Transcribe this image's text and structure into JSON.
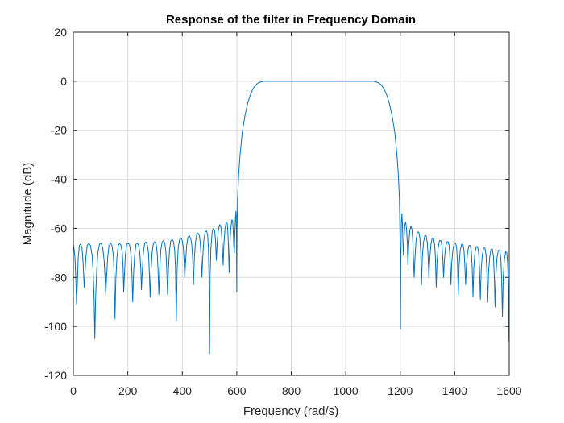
{
  "chart_data": {
    "type": "line",
    "title": "Response of the filter in Frequency Domain",
    "xlabel": "Frequency (rad/s)",
    "ylabel": "Magnitude (dB)",
    "xlim": [
      0,
      1600
    ],
    "ylim": [
      -120,
      20
    ],
    "xticks": [
      0,
      200,
      400,
      600,
      800,
      1000,
      1200,
      1400,
      1600
    ],
    "yticks": [
      20,
      0,
      -20,
      -40,
      -60,
      -80,
      -100,
      -120
    ],
    "xtick_labels": [
      "0",
      "200",
      "400",
      "600",
      "800",
      "1000",
      "1200",
      "1400",
      "1600"
    ],
    "ytick_labels": [
      "20",
      "0",
      "-20",
      "-40",
      "-60",
      "-80",
      "-100",
      "-120"
    ],
    "grid": true,
    "line_color": "#0072BD",
    "series": [
      {
        "values": [
          [
            0,
            -66.5
          ],
          [
            2.5,
            -68
          ],
          [
            6,
            -72
          ],
          [
            9,
            -80
          ],
          [
            12,
            -91
          ],
          [
            15,
            -82
          ],
          [
            18,
            -72
          ],
          [
            22,
            -67
          ],
          [
            27,
            -66.3
          ],
          [
            32,
            -68
          ],
          [
            36,
            -74
          ],
          [
            38,
            -79
          ],
          [
            40,
            -84
          ],
          [
            42,
            -80
          ],
          [
            46,
            -72
          ],
          [
            51,
            -67
          ],
          [
            57,
            -66
          ],
          [
            63,
            -67
          ],
          [
            69,
            -71
          ],
          [
            73,
            -78
          ],
          [
            76,
            -88
          ],
          [
            79,
            -105
          ],
          [
            82,
            -88
          ],
          [
            86,
            -77
          ],
          [
            90,
            -70
          ],
          [
            96,
            -66.5
          ],
          [
            102,
            -66
          ],
          [
            108,
            -68
          ],
          [
            113,
            -73
          ],
          [
            116,
            -79
          ],
          [
            119,
            -87
          ],
          [
            122,
            -80
          ],
          [
            126,
            -72
          ],
          [
            131,
            -67
          ],
          [
            137,
            -66
          ],
          [
            142,
            -67
          ],
          [
            147,
            -71
          ],
          [
            150,
            -79
          ],
          [
            153,
            -97
          ],
          [
            156,
            -81
          ],
          [
            160,
            -72
          ],
          [
            165,
            -67
          ],
          [
            170,
            -66
          ],
          [
            175,
            -67
          ],
          [
            180,
            -70
          ],
          [
            183,
            -77
          ],
          [
            185,
            -86
          ],
          [
            188,
            -78
          ],
          [
            191,
            -71
          ],
          [
            196,
            -66.5
          ],
          [
            202,
            -66
          ],
          [
            207,
            -67
          ],
          [
            212,
            -71
          ],
          [
            215,
            -78
          ],
          [
            218,
            -90
          ],
          [
            221,
            -79
          ],
          [
            225,
            -71
          ],
          [
            230,
            -66.5
          ],
          [
            235,
            -66
          ],
          [
            240,
            -67
          ],
          [
            244,
            -70
          ],
          [
            248,
            -77
          ],
          [
            250,
            -85
          ],
          [
            253,
            -78
          ],
          [
            257,
            -70
          ],
          [
            262,
            -66
          ],
          [
            267,
            -65.5
          ],
          [
            272,
            -67
          ],
          [
            276,
            -70
          ],
          [
            279,
            -78
          ],
          [
            282,
            -88
          ],
          [
            285,
            -78
          ],
          [
            289,
            -70
          ],
          [
            294,
            -66
          ],
          [
            299,
            -65.5
          ],
          [
            304,
            -66.5
          ],
          [
            308,
            -70
          ],
          [
            311,
            -77
          ],
          [
            314,
            -87
          ],
          [
            317,
            -77
          ],
          [
            321,
            -69
          ],
          [
            326,
            -65.5
          ],
          [
            331,
            -65
          ],
          [
            336,
            -66
          ],
          [
            340,
            -70
          ],
          [
            343,
            -77
          ],
          [
            346,
            -87
          ],
          [
            349,
            -77
          ],
          [
            353,
            -69
          ],
          [
            358,
            -65
          ],
          [
            363,
            -64.5
          ],
          [
            368,
            -65.5
          ],
          [
            372,
            -69
          ],
          [
            375,
            -76
          ],
          [
            378,
            -98
          ],
          [
            381,
            -77
          ],
          [
            385,
            -68
          ],
          [
            390,
            -64.5
          ],
          [
            395,
            -64
          ],
          [
            400,
            -65
          ],
          [
            404,
            -68
          ],
          [
            407,
            -74
          ],
          [
            409,
            -80
          ],
          [
            412,
            -74
          ],
          [
            416,
            -67
          ],
          [
            421,
            -63.5
          ],
          [
            426,
            -63
          ],
          [
            431,
            -64
          ],
          [
            435,
            -67
          ],
          [
            438,
            -72
          ],
          [
            441,
            -83
          ],
          [
            444,
            -73
          ],
          [
            448,
            -66
          ],
          [
            453,
            -62.5
          ],
          [
            458,
            -62
          ],
          [
            463,
            -63
          ],
          [
            466,
            -66
          ],
          [
            469,
            -71
          ],
          [
            472,
            -80
          ],
          [
            475,
            -72
          ],
          [
            479,
            -65
          ],
          [
            484,
            -61.5
          ],
          [
            489,
            -61
          ],
          [
            493,
            -62.5
          ],
          [
            496,
            -68
          ],
          [
            498,
            -80
          ],
          [
            500,
            -111
          ],
          [
            502,
            -80
          ],
          [
            505,
            -68
          ],
          [
            510,
            -61
          ],
          [
            515,
            -60
          ],
          [
            519,
            -61
          ],
          [
            522,
            -65
          ],
          [
            525,
            -73
          ],
          [
            528,
            -66
          ],
          [
            532,
            -61
          ],
          [
            537,
            -58.5
          ],
          [
            541,
            -59
          ],
          [
            544,
            -62
          ],
          [
            547,
            -67
          ],
          [
            550,
            -75
          ],
          [
            553,
            -66
          ],
          [
            557,
            -60
          ],
          [
            561,
            -57.5
          ],
          [
            565,
            -58
          ],
          [
            567,
            -61
          ],
          [
            569,
            -66
          ],
          [
            572,
            -78
          ],
          [
            575,
            -66
          ],
          [
            578,
            -60
          ],
          [
            582,
            -56.5
          ],
          [
            585,
            -57
          ],
          [
            587,
            -61
          ],
          [
            589,
            -67
          ],
          [
            591,
            -70
          ],
          [
            593,
            -62
          ],
          [
            595,
            -56
          ],
          [
            597,
            -53
          ],
          [
            598,
            -55
          ],
          [
            599,
            -65
          ],
          [
            600,
            -86
          ],
          [
            601,
            -60
          ],
          [
            603,
            -48
          ],
          [
            607,
            -38
          ],
          [
            612,
            -30
          ],
          [
            620,
            -21
          ],
          [
            630,
            -14
          ],
          [
            640,
            -9
          ],
          [
            650,
            -5.5
          ],
          [
            660,
            -3
          ],
          [
            670,
            -1.5
          ],
          [
            680,
            -0.6
          ],
          [
            690,
            -0.2
          ],
          [
            700,
            0
          ],
          [
            750,
            0
          ],
          [
            800,
            0
          ],
          [
            850,
            0
          ],
          [
            900,
            0
          ],
          [
            950,
            0
          ],
          [
            1000,
            0
          ],
          [
            1050,
            0
          ],
          [
            1100,
            0
          ],
          [
            1110,
            -0.2
          ],
          [
            1120,
            -0.6
          ],
          [
            1130,
            -1.5
          ],
          [
            1140,
            -3
          ],
          [
            1150,
            -5.5
          ],
          [
            1160,
            -9
          ],
          [
            1170,
            -14
          ],
          [
            1180,
            -21
          ],
          [
            1188,
            -30
          ],
          [
            1193,
            -38
          ],
          [
            1197,
            -48
          ],
          [
            1200,
            -70
          ],
          [
            1201,
            -101
          ],
          [
            1202,
            -76
          ],
          [
            1204,
            -58
          ],
          [
            1206,
            -54
          ],
          [
            1208,
            -58
          ],
          [
            1210,
            -66
          ],
          [
            1212,
            -71
          ],
          [
            1214,
            -64
          ],
          [
            1217,
            -58.5
          ],
          [
            1220,
            -57.5
          ],
          [
            1223,
            -60
          ],
          [
            1226,
            -66
          ],
          [
            1228,
            -75
          ],
          [
            1231,
            -67
          ],
          [
            1235,
            -61
          ],
          [
            1239,
            -59
          ],
          [
            1243,
            -60.5
          ],
          [
            1246,
            -65
          ],
          [
            1249,
            -74
          ],
          [
            1251,
            -80
          ],
          [
            1254,
            -72
          ],
          [
            1258,
            -65
          ],
          [
            1263,
            -61.5
          ],
          [
            1268,
            -61.5
          ],
          [
            1272,
            -64
          ],
          [
            1275,
            -69
          ],
          [
            1278,
            -83
          ],
          [
            1281,
            -72
          ],
          [
            1285,
            -66
          ],
          [
            1290,
            -63
          ],
          [
            1295,
            -63
          ],
          [
            1299,
            -65.5
          ],
          [
            1302,
            -71
          ],
          [
            1305,
            -80
          ],
          [
            1308,
            -73
          ],
          [
            1312,
            -67
          ],
          [
            1317,
            -64
          ],
          [
            1322,
            -64
          ],
          [
            1326,
            -66.5
          ],
          [
            1329,
            -72
          ],
          [
            1332,
            -84
          ],
          [
            1335,
            -74
          ],
          [
            1339,
            -68
          ],
          [
            1344,
            -65
          ],
          [
            1349,
            -65
          ],
          [
            1353,
            -67
          ],
          [
            1356,
            -72
          ],
          [
            1359,
            -80
          ],
          [
            1362,
            -73
          ],
          [
            1366,
            -68
          ],
          [
            1371,
            -65.5
          ],
          [
            1376,
            -65.5
          ],
          [
            1380,
            -67.5
          ],
          [
            1383,
            -73
          ],
          [
            1386,
            -83
          ],
          [
            1389,
            -74
          ],
          [
            1393,
            -69
          ],
          [
            1398,
            -66
          ],
          [
            1403,
            -66
          ],
          [
            1407,
            -68
          ],
          [
            1410,
            -74
          ],
          [
            1413,
            -87
          ],
          [
            1416,
            -75
          ],
          [
            1420,
            -69
          ],
          [
            1425,
            -66.5
          ],
          [
            1430,
            -66.5
          ],
          [
            1434,
            -69
          ],
          [
            1437,
            -75
          ],
          [
            1440,
            -83
          ],
          [
            1443,
            -75
          ],
          [
            1447,
            -70
          ],
          [
            1452,
            -67
          ],
          [
            1457,
            -67
          ],
          [
            1461,
            -69.5
          ],
          [
            1464,
            -76
          ],
          [
            1467,
            -88
          ],
          [
            1470,
            -76
          ],
          [
            1474,
            -70
          ],
          [
            1479,
            -67.5
          ],
          [
            1484,
            -67.5
          ],
          [
            1488,
            -70
          ],
          [
            1491,
            -77
          ],
          [
            1494,
            -89
          ],
          [
            1497,
            -77
          ],
          [
            1501,
            -71
          ],
          [
            1506,
            -68
          ],
          [
            1511,
            -68
          ],
          [
            1515,
            -71
          ],
          [
            1518,
            -78
          ],
          [
            1521,
            -90
          ],
          [
            1524,
            -78
          ],
          [
            1528,
            -72
          ],
          [
            1533,
            -68.5
          ],
          [
            1538,
            -68.5
          ],
          [
            1542,
            -71.5
          ],
          [
            1545,
            -79
          ],
          [
            1548,
            -92
          ],
          [
            1551,
            -79
          ],
          [
            1555,
            -72
          ],
          [
            1560,
            -69
          ],
          [
            1565,
            -69
          ],
          [
            1569,
            -72
          ],
          [
            1572,
            -80
          ],
          [
            1575,
            -96
          ],
          [
            1578,
            -80
          ],
          [
            1582,
            -73
          ],
          [
            1587,
            -69.5
          ],
          [
            1591,
            -70
          ],
          [
            1594,
            -74
          ],
          [
            1597,
            -84
          ],
          [
            1599,
            -106
          ],
          [
            1600,
            -85
          ]
        ]
      }
    ]
  }
}
